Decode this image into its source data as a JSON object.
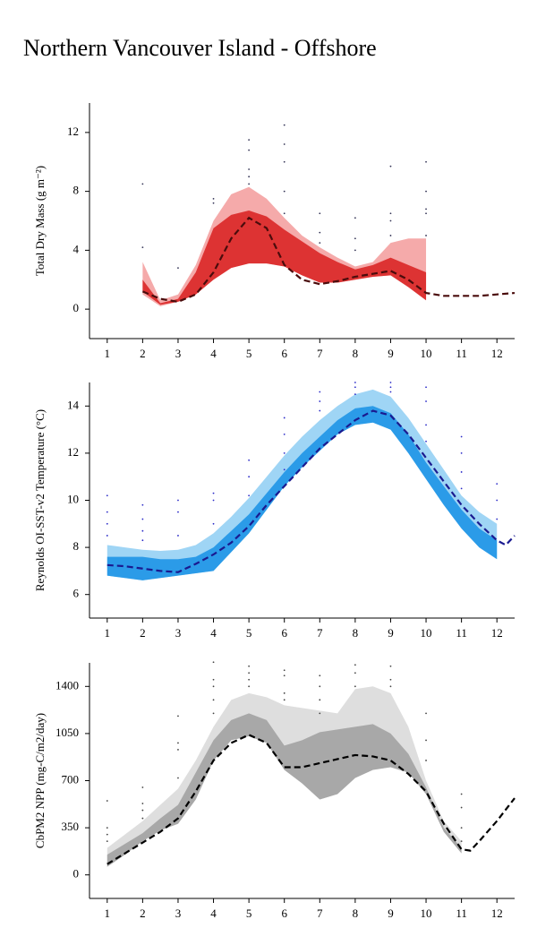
{
  "title": "Northern Vancouver Island - Offshore",
  "chart_data": [
    {
      "type": "band",
      "ylabel": "Total Dry Mass (g m⁻²)",
      "xlim": [
        0.5,
        12.5
      ],
      "xticks": [
        1,
        2,
        3,
        4,
        5,
        6,
        7,
        8,
        9,
        10,
        11,
        12
      ],
      "ylim": [
        -2,
        14
      ],
      "yticks": [
        0,
        4,
        8,
        12
      ],
      "bands": [
        {
          "color": "#f5aaaa",
          "x": [
            2,
            2.5,
            3,
            3.5,
            4,
            4.5,
            5,
            5.5,
            6,
            6.5,
            7,
            7.5,
            8,
            8.5,
            9,
            9.5,
            10
          ],
          "upper": [
            3.2,
            0.6,
            1.0,
            3.0,
            6.0,
            7.8,
            8.3,
            7.5,
            6.2,
            5.0,
            4.2,
            3.5,
            2.9,
            3.2,
            4.5,
            4.8,
            4.8
          ],
          "lower": [
            1.0,
            0.2,
            0.5,
            1.0,
            2.0,
            2.8,
            3.1,
            3.1,
            2.9,
            2.3,
            1.8,
            1.8,
            2.0,
            2.2,
            2.3,
            1.5,
            0.6
          ]
        },
        {
          "color": "#dd3333",
          "x": [
            2,
            2.5,
            3,
            3.5,
            4,
            4.5,
            5,
            5.5,
            6,
            6.5,
            7,
            7.5,
            8,
            8.5,
            9,
            9.5,
            10
          ],
          "upper": [
            2.0,
            0.4,
            0.7,
            2.5,
            5.5,
            6.4,
            6.7,
            6.3,
            5.4,
            4.6,
            3.8,
            3.2,
            2.7,
            3.0,
            3.5,
            3.0,
            2.5
          ],
          "lower": [
            1.2,
            0.3,
            0.5,
            1.0,
            2.0,
            2.8,
            3.1,
            3.1,
            2.9,
            2.3,
            1.8,
            1.8,
            2.0,
            2.2,
            2.3,
            1.5,
            0.6
          ]
        }
      ],
      "line": {
        "color": "#4a0c0c",
        "x": [
          2,
          2.5,
          3,
          3.5,
          4,
          4.5,
          5,
          5.5,
          6,
          6.5,
          7,
          7.5,
          8,
          8.5,
          9,
          9.5,
          10,
          10.5,
          11,
          11.5,
          12,
          12.5
        ],
        "values": [
          1.2,
          0.7,
          0.5,
          1.0,
          2.5,
          4.8,
          6.2,
          5.5,
          3.0,
          2.0,
          1.7,
          1.9,
          2.2,
          2.4,
          2.6,
          2.0,
          1.1,
          0.9,
          0.9,
          0.9,
          1.0,
          1.1
        ]
      },
      "points": {
        "color": "#333355",
        "x": [
          2,
          2,
          3,
          4,
          4,
          5,
          5,
          5,
          5,
          5,
          6,
          6,
          6,
          6,
          6,
          7,
          7,
          7,
          8,
          8,
          8,
          9,
          9,
          9,
          9,
          10,
          10,
          10,
          10,
          10
        ],
        "values": [
          8.5,
          4.2,
          2.8,
          7.5,
          7.2,
          11.5,
          10.8,
          9.5,
          9,
          8.5,
          12.5,
          11.2,
          10,
          8,
          6.5,
          6.5,
          5.2,
          4.5,
          6.2,
          4.8,
          4,
          9.7,
          6.5,
          6,
          5,
          10,
          8,
          6.8,
          6.5,
          5
        ]
      }
    },
    {
      "type": "band",
      "ylabel": "Reynolds OI-SST-v2 Temperature (°C)",
      "xlim": [
        0.5,
        12.5
      ],
      "xticks": [
        1,
        2,
        3,
        4,
        5,
        6,
        7,
        8,
        9,
        10,
        11,
        12
      ],
      "ylim": [
        5,
        15
      ],
      "yticks": [
        6,
        8,
        10,
        12,
        14
      ],
      "bands": [
        {
          "color": "#9fd5f5",
          "x": [
            1,
            1.5,
            2,
            2.5,
            3,
            3.5,
            4,
            4.5,
            5,
            5.5,
            6,
            6.5,
            7,
            7.5,
            8,
            8.5,
            9,
            9.5,
            10,
            10.5,
            11,
            11.5,
            12
          ],
          "upper": [
            8.1,
            8.0,
            7.9,
            7.85,
            7.9,
            8.1,
            8.6,
            9.3,
            10.1,
            11.0,
            11.9,
            12.7,
            13.4,
            14.0,
            14.5,
            14.7,
            14.4,
            13.5,
            12.4,
            11.3,
            10.2,
            9.5,
            9.0
          ],
          "lower": [
            6.8,
            6.7,
            6.6,
            6.7,
            6.8,
            6.9,
            7.0,
            7.8,
            8.6,
            9.6,
            10.6,
            11.4,
            12.1,
            12.8,
            13.2,
            13.3,
            13.0,
            12.0,
            10.9,
            9.8,
            8.8,
            8.0,
            7.5
          ]
        },
        {
          "color": "#2b9be8",
          "x": [
            1,
            1.5,
            2,
            2.5,
            3,
            3.5,
            4,
            4.5,
            5,
            5.5,
            6,
            6.5,
            7,
            7.5,
            8,
            8.5,
            9,
            9.5,
            10,
            10.5,
            11,
            11.5,
            12
          ],
          "upper": [
            7.6,
            7.6,
            7.6,
            7.5,
            7.5,
            7.6,
            8.0,
            8.7,
            9.4,
            10.3,
            11.2,
            12.0,
            12.7,
            13.4,
            13.9,
            14.0,
            13.7,
            12.8,
            11.6,
            10.6,
            9.6,
            8.8,
            8.3
          ],
          "lower": [
            6.8,
            6.7,
            6.6,
            6.7,
            6.8,
            6.9,
            7.0,
            7.8,
            8.6,
            9.6,
            10.6,
            11.4,
            12.1,
            12.8,
            13.2,
            13.3,
            13.0,
            12.0,
            10.9,
            9.8,
            8.8,
            8.0,
            7.5
          ]
        }
      ],
      "line": {
        "color": "#1a1a90",
        "x": [
          1,
          1.5,
          2,
          2.5,
          3,
          3.5,
          4,
          4.5,
          5,
          5.5,
          6,
          6.5,
          7,
          7.5,
          8,
          8.5,
          9,
          9.5,
          10,
          10.5,
          11,
          11.5,
          12,
          12.25,
          12.5
        ],
        "values": [
          7.25,
          7.2,
          7.1,
          7.0,
          6.95,
          7.3,
          7.7,
          8.2,
          8.9,
          9.8,
          10.6,
          11.4,
          12.2,
          12.8,
          13.4,
          13.8,
          13.6,
          12.8,
          11.8,
          10.8,
          9.8,
          9.0,
          8.3,
          8.1,
          8.5
        ]
      },
      "points": {
        "color": "#2a2ac8",
        "x": [
          1,
          1,
          1,
          1,
          2,
          2,
          2,
          2,
          3,
          3,
          3,
          4,
          4,
          4,
          5,
          5,
          5,
          6,
          6,
          6,
          6,
          7,
          7,
          7,
          8,
          8,
          8,
          9,
          9,
          9,
          10,
          10,
          10,
          10,
          11,
          11,
          11,
          11,
          12,
          12,
          12
        ],
        "values": [
          10.2,
          9.5,
          9,
          8.5,
          9.8,
          9.2,
          8.7,
          8.3,
          10,
          9.5,
          8.5,
          10.3,
          10,
          9,
          11.7,
          11,
          10.2,
          13.5,
          12.8,
          12,
          11.3,
          14.6,
          14.2,
          13.8,
          15,
          14.8,
          14.5,
          15,
          14.8,
          14.6,
          14.8,
          14.2,
          13.2,
          12.5,
          12.7,
          12,
          11.2,
          10.5,
          10.7,
          10,
          9.2
        ]
      }
    },
    {
      "type": "band",
      "ylabel": "CbPM2 NPP (mg-C/m2/day)",
      "xlim": [
        0.5,
        12.5
      ],
      "xticks": [
        1,
        2,
        3,
        4,
        5,
        6,
        7,
        8,
        9,
        10,
        11,
        12
      ],
      "ylim": [
        -175,
        1575
      ],
      "yticks": [
        0,
        350,
        700,
        1050,
        1400
      ],
      "bands": [
        {
          "color": "#dedede",
          "x": [
            1,
            1.5,
            2,
            2.5,
            3,
            3.5,
            4,
            4.5,
            5,
            5.5,
            6,
            6.5,
            7,
            7.5,
            8,
            8.5,
            9,
            9.5,
            10,
            10.5,
            11
          ],
          "upper": [
            200,
            300,
            400,
            520,
            640,
            850,
            1100,
            1300,
            1350,
            1320,
            1260,
            1240,
            1220,
            1200,
            1380,
            1400,
            1350,
            1100,
            700,
            400,
            250
          ],
          "lower": [
            60,
            150,
            250,
            330,
            380,
            560,
            850,
            1000,
            1030,
            980,
            780,
            680,
            560,
            600,
            720,
            780,
            800,
            760,
            600,
            320,
            160
          ]
        },
        {
          "color": "#a8a8a8",
          "x": [
            1,
            1.5,
            2,
            2.5,
            3,
            3.5,
            4,
            4.5,
            5,
            5.5,
            6,
            6.5,
            7,
            7.5,
            8,
            8.5,
            9,
            9.5,
            10,
            10.5,
            11
          ],
          "upper": [
            150,
            230,
            310,
            420,
            520,
            760,
            1000,
            1150,
            1200,
            1150,
            960,
            1000,
            1060,
            1080,
            1100,
            1120,
            1050,
            900,
            650,
            350,
            200
          ],
          "lower": [
            60,
            150,
            250,
            330,
            380,
            560,
            850,
            1000,
            1030,
            980,
            780,
            680,
            560,
            600,
            720,
            780,
            800,
            760,
            600,
            320,
            160
          ]
        }
      ],
      "line": {
        "color": "#000000",
        "x": [
          1,
          1.5,
          2,
          2.5,
          3,
          3.5,
          4,
          4.5,
          5,
          5.5,
          6,
          6.5,
          7,
          7.5,
          8,
          8.5,
          9,
          9.5,
          10,
          10.5,
          11,
          11.25,
          11.5,
          12,
          12.5
        ],
        "values": [
          80,
          160,
          240,
          320,
          420,
          620,
          850,
          980,
          1040,
          980,
          800,
          800,
          830,
          860,
          890,
          880,
          850,
          750,
          620,
          380,
          190,
          180,
          250,
          400,
          570
        ]
      },
      "points": {
        "color": "#444444",
        "x": [
          1,
          1,
          1,
          1,
          2,
          2,
          2,
          2,
          3,
          3,
          3,
          3,
          4,
          4,
          4,
          4,
          4,
          5,
          5,
          5,
          5,
          6,
          6,
          6,
          6,
          7,
          7,
          7,
          7,
          8,
          8,
          8,
          9,
          9,
          9,
          10,
          10,
          10,
          11,
          11,
          11,
          11
        ],
        "values": [
          550,
          350,
          300,
          250,
          650,
          530,
          480,
          420,
          1180,
          980,
          930,
          720,
          1580,
          1450,
          1400,
          1300,
          1200,
          1550,
          1500,
          1450,
          1400,
          1520,
          1480,
          1350,
          1300,
          1480,
          1400,
          1300,
          1200,
          1560,
          1500,
          1400,
          1550,
          1450,
          1400,
          1200,
          1000,
          850,
          600,
          500,
          350,
          250
        ]
      }
    }
  ]
}
